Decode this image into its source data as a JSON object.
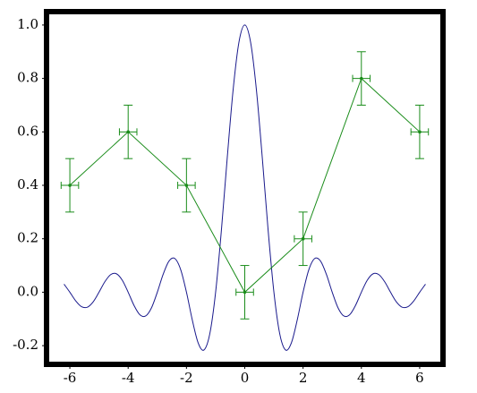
{
  "chart_data": {
    "type": "line",
    "xlim": [
      -6.8,
      6.8
    ],
    "ylim": [
      -0.27,
      1.05
    ],
    "xticks": [
      -6,
      -4,
      -2,
      0,
      2,
      4,
      6
    ],
    "yticks": [
      {
        "value": -0.2,
        "label": "-0.2"
      },
      {
        "value": 0,
        "label": "0.0"
      },
      0.2,
      0.4,
      0.6,
      0.8,
      {
        "value": 1,
        "label": "1.0"
      }
    ],
    "series": [
      {
        "color": "#1a1a8c",
        "x": [
          -6.2,
          -6.0,
          -5.8,
          -5.6,
          -5.4,
          -5.2,
          -5.0,
          -4.8,
          -4.6,
          -4.4,
          -4.2,
          -4.0,
          -3.8,
          -3.6,
          -3.4,
          -3.2,
          -3.0,
          -2.8,
          -2.6,
          -2.4,
          -2.2,
          -2.0,
          -1.8,
          -1.6,
          -1.4,
          -1.2,
          -1.0,
          -0.8,
          -0.6,
          -0.4,
          -0.2,
          0,
          0.2,
          0.4,
          0.6,
          0.8,
          1.0,
          1.2,
          1.4,
          1.6,
          1.8,
          2.0,
          2.2,
          2.4,
          2.6,
          2.8,
          3.0,
          3.2,
          3.4,
          3.6,
          3.8,
          4.0,
          4.2,
          4.4,
          4.6,
          4.8,
          5.0,
          5.2,
          5.4,
          5.6,
          5.8,
          6.0,
          6.2
        ],
        "values": [
          0.0302,
          0,
          -0.0323,
          -0.0541,
          -0.0561,
          -0.036,
          0,
          0.039,
          0.0658,
          0.0688,
          0.0445,
          0,
          -0.0492,
          -0.0841,
          -0.089,
          -0.0585,
          0,
          0.0668,
          0.1164,
          0.1261,
          0.085,
          0,
          -0.1039,
          -0.1892,
          -0.2162,
          -0.1559,
          0,
          0.2339,
          0.5046,
          0.7568,
          0.9355,
          1,
          0.9355,
          0.7568,
          0.5046,
          0.2339,
          0,
          -0.1559,
          -0.2162,
          -0.1892,
          -0.1039,
          0,
          0.085,
          0.1261,
          0.1164,
          0.0668,
          0,
          -0.0585,
          -0.089,
          -0.0841,
          -0.0492,
          0,
          0.0445,
          0.0688,
          0.0658,
          0.039,
          0,
          -0.036,
          -0.0561,
          -0.0541,
          -0.0323,
          0,
          0.0302
        ]
      },
      {
        "color": "#1a8c1a",
        "x": [
          -6,
          -4,
          -2,
          0,
          2,
          4,
          6
        ],
        "values": [
          0.4,
          0.6,
          0.4,
          0,
          0.2,
          0.8,
          0.6
        ],
        "yerr": [
          0.1,
          0.1,
          0.1,
          0.1,
          0.1,
          0.1,
          0.1
        ],
        "xerr": [
          0.3,
          0.3,
          0.3,
          0.3,
          0.3,
          0.3,
          0.3
        ]
      }
    ]
  }
}
